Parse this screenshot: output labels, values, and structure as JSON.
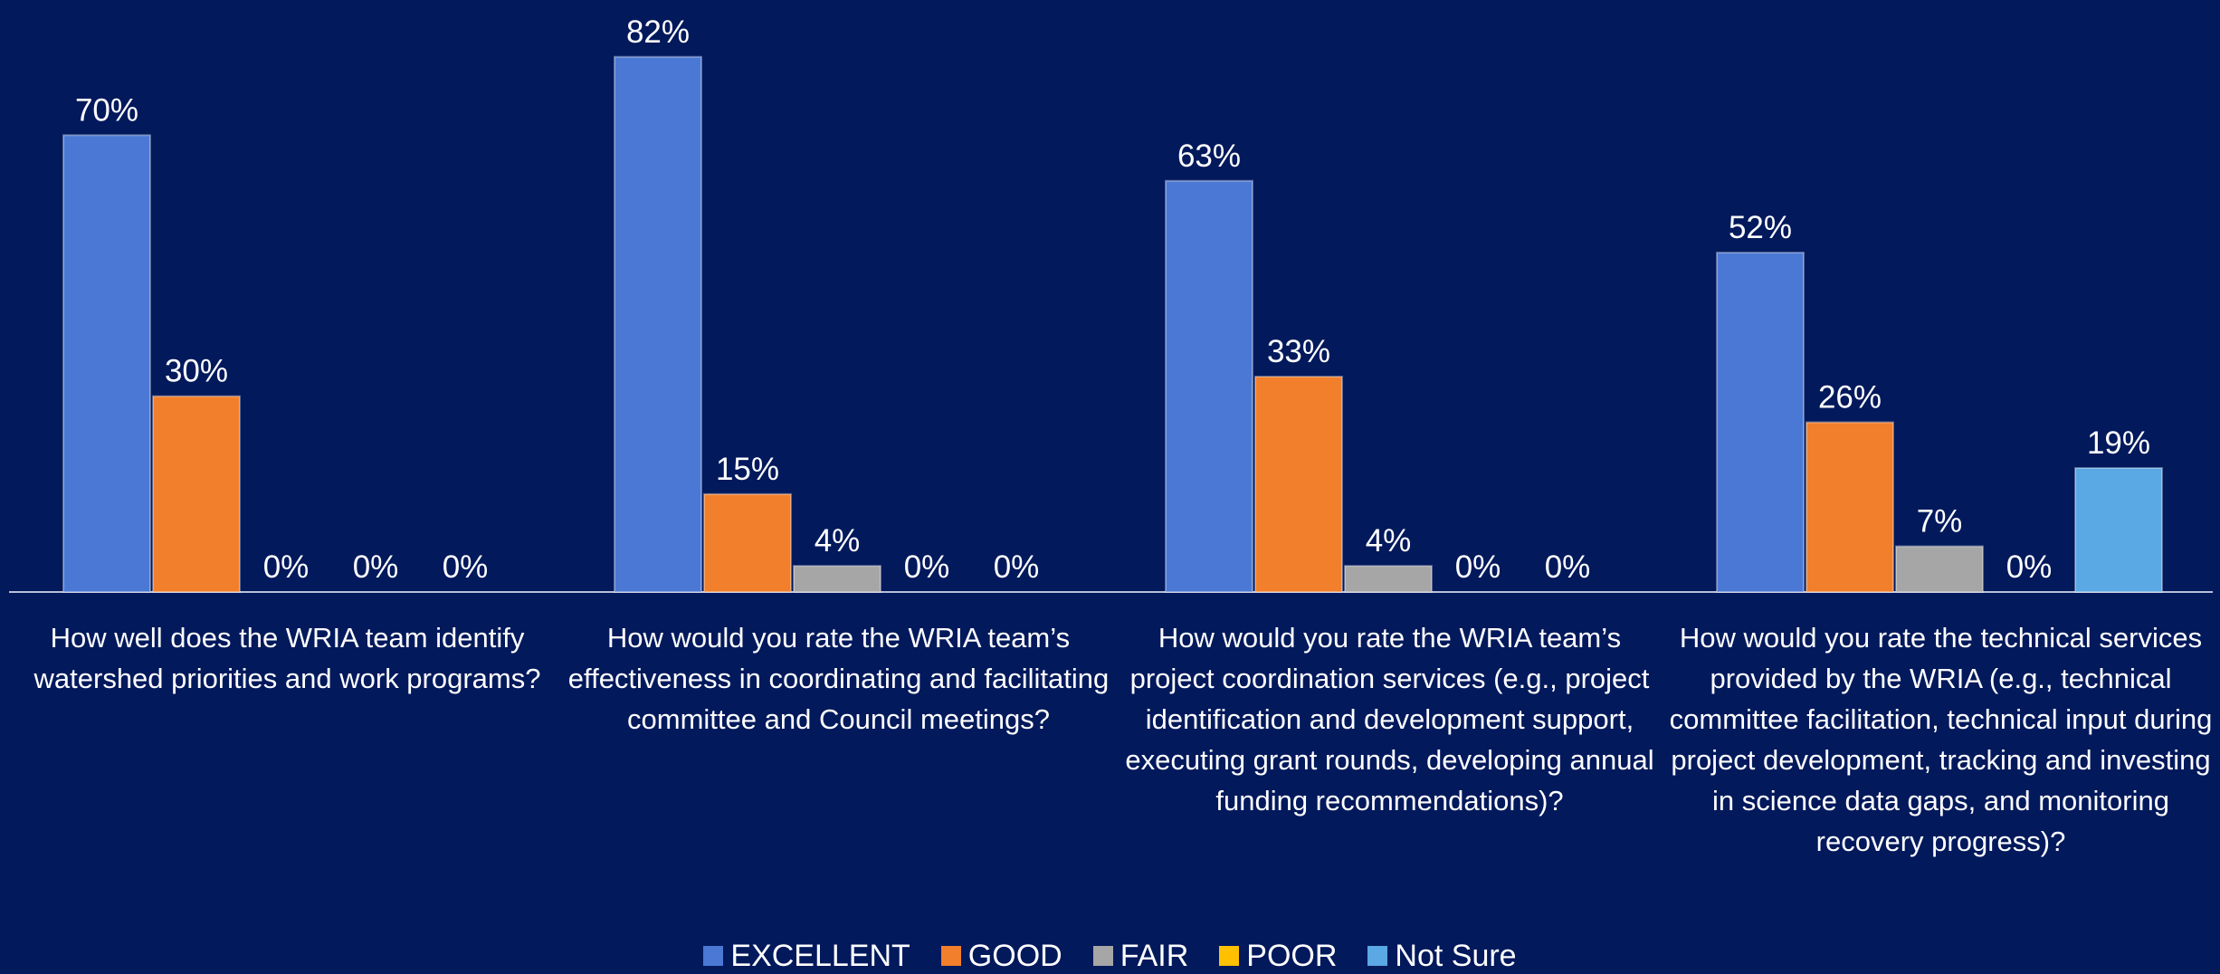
{
  "chart_data": {
    "type": "bar",
    "categories": [
      "How well does the WRIA team identify watershed priorities and work programs?",
      "How would you rate the WRIA team’s effectiveness in coordinating and facilitating committee and Council meetings?",
      "How would you rate the WRIA team’s project coordination services (e.g., project identification and development support, executing grant rounds, developing annual funding recommendations)?",
      "How would you rate the technical services provided by the WRIA (e.g., technical committee facilitation, technical input during project development, tracking and investing in science data gaps, and monitoring recovery progress)?"
    ],
    "series": [
      {
        "name": "EXCELLENT",
        "color": "#4a78d4",
        "values": [
          70,
          82,
          63,
          52
        ],
        "value_labels": [
          "70%",
          "82%",
          "63%",
          "52%"
        ]
      },
      {
        "name": "GOOD",
        "color": "#f27f2c",
        "values": [
          30,
          15,
          33,
          26
        ],
        "value_labels": [
          "30%",
          "15%",
          "33%",
          "26%"
        ]
      },
      {
        "name": "FAIR",
        "color": "#a6a6a6",
        "values": [
          0,
          4,
          4,
          7
        ],
        "value_labels": [
          "0%",
          "4%",
          "4%",
          "7%"
        ]
      },
      {
        "name": "POOR",
        "color": "#ffc000",
        "values": [
          0,
          0,
          0,
          0
        ],
        "value_labels": [
          "0%",
          "0%",
          "0%",
          "0%"
        ]
      },
      {
        "name": "Not Sure",
        "color": "#5aa8e4",
        "values": [
          0,
          0,
          0,
          19
        ],
        "value_labels": [
          "0%",
          "0%",
          "0%",
          "19%"
        ]
      }
    ],
    "legend": "bottom"
  }
}
